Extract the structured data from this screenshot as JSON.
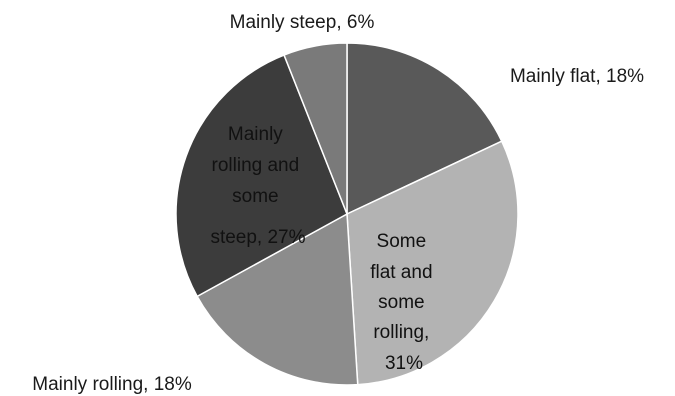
{
  "chart_data": {
    "type": "pie",
    "title": "",
    "start_angle_deg": 0,
    "direction": "clockwise",
    "slices": [
      {
        "name": "Mainly flat",
        "value": 18,
        "label_lines": [
          "Mainly flat, 18%"
        ],
        "label_position": "outside",
        "color": "#595959"
      },
      {
        "name": "Some flat and some rolling",
        "value": 31,
        "label_lines": [
          "Some",
          "flat and",
          "some",
          "rolling,",
          "31%"
        ],
        "label_position": "inside",
        "color": "#b3b3b3"
      },
      {
        "name": "Mainly rolling",
        "value": 18,
        "label_lines": [
          "Mainly rolling, 18%"
        ],
        "label_position": "outside",
        "color": "#8c8c8c"
      },
      {
        "name": "Mainly rolling and some steep",
        "value": 27,
        "label_lines": [
          "Mainly",
          "rolling and",
          "some",
          "steep, 27%"
        ],
        "label_position": "inside",
        "color": "#3c3c3c"
      },
      {
        "name": "Mainly steep",
        "value": 6,
        "label_lines": [
          "Mainly steep, 6%"
        ],
        "label_position": "outside",
        "color": "#7a7a7a"
      }
    ],
    "slice_border_color": "#ffffff"
  }
}
